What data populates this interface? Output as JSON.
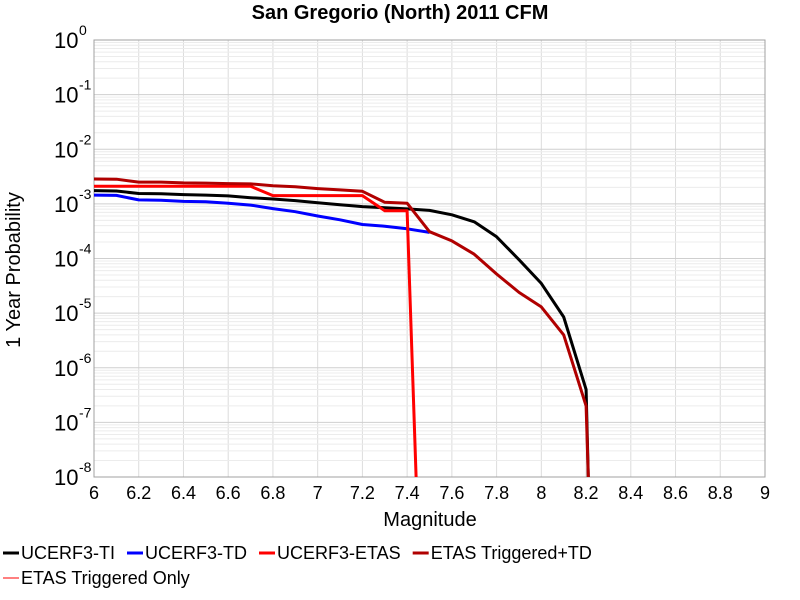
{
  "chart_data": {
    "type": "line",
    "title": "San Gregorio (North) 2011 CFM",
    "xlabel": "Magnitude",
    "ylabel": "1 Year Probability",
    "xlim": [
      6,
      9
    ],
    "ylim": [
      1e-08,
      1
    ],
    "yscale": "log",
    "grid": true,
    "legend_position": "bottom",
    "xticks": [
      "6",
      "6.2",
      "6.4",
      "6.6",
      "6.8",
      "7",
      "7.2",
      "7.4",
      "7.6",
      "7.8",
      "8",
      "8.2",
      "8.4",
      "8.6",
      "8.8",
      "9"
    ],
    "yticks": [
      {
        "base": "10",
        "exp": "0"
      },
      {
        "base": "10",
        "exp": "-1"
      },
      {
        "base": "10",
        "exp": "-2"
      },
      {
        "base": "10",
        "exp": "-3"
      },
      {
        "base": "10",
        "exp": "-4"
      },
      {
        "base": "10",
        "exp": "-5"
      },
      {
        "base": "10",
        "exp": "-6"
      },
      {
        "base": "10",
        "exp": "-7"
      },
      {
        "base": "10",
        "exp": "-8"
      }
    ],
    "series": [
      {
        "name": "UCERF3-TI",
        "color": "#000000",
        "x": [
          6.0,
          6.1,
          6.2,
          6.3,
          6.4,
          6.5,
          6.6,
          6.7,
          6.8,
          6.9,
          7.0,
          7.1,
          7.2,
          7.3,
          7.4,
          7.5,
          7.6,
          7.7,
          7.8,
          7.9,
          8.0,
          8.1,
          8.2,
          8.21
        ],
        "y": [
          0.00175,
          0.00172,
          0.00155,
          0.00153,
          0.00148,
          0.00145,
          0.0014,
          0.0013,
          0.00123,
          0.00115,
          0.00105,
          0.00096,
          0.00089,
          0.00085,
          0.00081,
          0.00076,
          0.00063,
          0.00047,
          0.00025,
          9.5e-05,
          3.5e-05,
          8.5e-06,
          4e-07,
          1e-08
        ]
      },
      {
        "name": "UCERF3-TD",
        "color": "#0000ff",
        "x": [
          6.0,
          6.1,
          6.2,
          6.3,
          6.4,
          6.5,
          6.6,
          6.7,
          6.8,
          6.9,
          7.0,
          7.1,
          7.2,
          7.3,
          7.4,
          7.5
        ],
        "y": [
          0.00145,
          0.00143,
          0.00118,
          0.00117,
          0.00111,
          0.00109,
          0.00103,
          0.00095,
          0.00082,
          0.00072,
          0.0006,
          0.00051,
          0.00042,
          0.00039,
          0.00035,
          0.0003
        ]
      },
      {
        "name": "UCERF3-ETAS",
        "color": "#ff0000",
        "x": [
          6.0,
          6.1,
          6.2,
          6.3,
          6.4,
          6.5,
          6.6,
          6.7,
          6.8,
          6.9,
          7.0,
          7.1,
          7.2,
          7.3,
          7.4,
          7.44
        ],
        "y": [
          0.0021,
          0.0021,
          0.0021,
          0.0021,
          0.0021,
          0.0021,
          0.0021,
          0.0021,
          0.00142,
          0.00142,
          0.00142,
          0.00142,
          0.00142,
          0.00075,
          0.00075,
          1e-08
        ]
      },
      {
        "name": "ETAS Triggered+TD",
        "color": "#b00000",
        "x": [
          6.0,
          6.1,
          6.2,
          6.3,
          6.4,
          6.5,
          6.6,
          6.7,
          6.8,
          6.9,
          7.0,
          7.1,
          7.2,
          7.3,
          7.4,
          7.5,
          7.6,
          7.7,
          7.8,
          7.9,
          8.0,
          8.1,
          8.2,
          8.21
        ],
        "y": [
          0.00285,
          0.00283,
          0.0025,
          0.0025,
          0.00242,
          0.0024,
          0.00235,
          0.00232,
          0.00215,
          0.00205,
          0.0019,
          0.0018,
          0.0017,
          0.00107,
          0.00103,
          0.00031,
          0.00021,
          0.00012,
          5.2e-05,
          2.4e-05,
          1.3e-05,
          4e-06,
          2e-07,
          1e-08
        ]
      },
      {
        "name": "ETAS Triggered Only",
        "color": "#ff8080",
        "x": [],
        "y": []
      }
    ]
  }
}
